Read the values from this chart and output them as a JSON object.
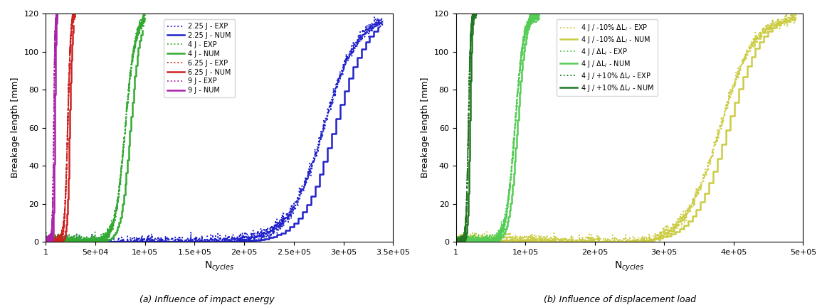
{
  "left_plot": {
    "xlim": [
      1,
      350000
    ],
    "ylim": [
      0,
      120
    ],
    "xlabel": "N$_{cycles}$",
    "ylabel": "Breakage length [mm]",
    "xticks": [
      50000,
      100000,
      150000,
      200000,
      250000,
      300000,
      350000
    ],
    "xticklabels": [
      "5e+04",
      "1e+05",
      "1.5e+05",
      "2e+05",
      "2.5e+05",
      "3e+05",
      "3.5e+05"
    ],
    "yticks": [
      0,
      20,
      40,
      60,
      80,
      100,
      120
    ],
    "series": [
      {
        "label": "2.25 J - EXP",
        "color": "#2222cc",
        "linestyle": "dotted",
        "lw": 1.3,
        "x_knee": 280000,
        "x_end": 340000,
        "shape": "slow_exp"
      },
      {
        "label": "2.25 J - NUM",
        "color": "#2222cc",
        "linestyle": "solid",
        "lw": 1.8,
        "x_knee": 290000,
        "x_end": 335000,
        "shape": "slow_num"
      },
      {
        "label": "4 J - EXP",
        "color": "#33aa33",
        "linestyle": "dotted",
        "lw": 1.3,
        "x_knee": 80000,
        "x_end": 100000,
        "shape": "medium_exp"
      },
      {
        "label": "4 J - NUM",
        "color": "#33aa33",
        "linestyle": "solid",
        "lw": 1.8,
        "x_knee": 85000,
        "x_end": 97000,
        "shape": "medium_num"
      },
      {
        "label": "6.25 J - EXP",
        "color": "#cc2222",
        "linestyle": "dotted",
        "lw": 1.3,
        "x_knee": 22000,
        "x_end": 30000,
        "shape": "fast_exp"
      },
      {
        "label": "6.25 J - NUM",
        "color": "#cc2222",
        "linestyle": "solid",
        "lw": 1.8,
        "x_knee": 24000,
        "x_end": 28000,
        "shape": "fast_num"
      },
      {
        "label": "9 J - EXP",
        "color": "#aa22aa",
        "linestyle": "dotted",
        "lw": 1.3,
        "x_knee": 8000,
        "x_end": 12000,
        "shape": "vfast_exp"
      },
      {
        "label": "9 J - NUM",
        "color": "#aa22aa",
        "linestyle": "solid",
        "lw": 1.8,
        "x_knee": 9000,
        "x_end": 11000,
        "shape": "vfast_num"
      }
    ]
  },
  "right_plot": {
    "xlim": [
      1,
      500000
    ],
    "ylim": [
      0,
      120
    ],
    "xlabel": "N$_{cycles}$",
    "ylabel": "Breakage length [mm]",
    "xticks": [
      100000,
      200000,
      300000,
      400000,
      500000
    ],
    "xticklabels": [
      "1e+05",
      "2e+05",
      "3e+05",
      "4e+05",
      "5e+05"
    ],
    "yticks": [
      0,
      20,
      40,
      60,
      80,
      100,
      120
    ],
    "series": [
      {
        "label": "4 J / -10% ΔL$_i$ - EXP",
        "color": "#cccc44",
        "linestyle": "dotted",
        "lw": 1.3,
        "x_knee": 380000,
        "x_end": 490000,
        "shape": "slow_exp"
      },
      {
        "label": "4 J / -10% ΔL$_i$ - NUM",
        "color": "#cccc44",
        "linestyle": "solid",
        "lw": 1.8,
        "x_knee": 390000,
        "x_end": 480000,
        "shape": "slow_num"
      },
      {
        "label": "4 J / ΔL$_i$ - EXP",
        "color": "#55cc55",
        "linestyle": "dotted",
        "lw": 1.3,
        "x_knee": 85000,
        "x_end": 120000,
        "shape": "medium_exp"
      },
      {
        "label": "4 J / ΔL$_i$ - NUM",
        "color": "#55cc55",
        "linestyle": "solid",
        "lw": 1.8,
        "x_knee": 88000,
        "x_end": 115000,
        "shape": "medium_num"
      },
      {
        "label": "4 J / +10% ΔL$_i$ - EXP",
        "color": "#227722",
        "linestyle": "dotted",
        "lw": 1.3,
        "x_knee": 18000,
        "x_end": 30000,
        "shape": "fast_exp"
      },
      {
        "label": "4 J / +10% ΔL$_i$ - NUM",
        "color": "#227722",
        "linestyle": "solid",
        "lw": 1.8,
        "x_knee": 20000,
        "x_end": 28000,
        "shape": "fast_num"
      }
    ]
  },
  "subplot_labels": [
    "(a) Influence of impact energy",
    "(b) Influence of displacement load"
  ]
}
